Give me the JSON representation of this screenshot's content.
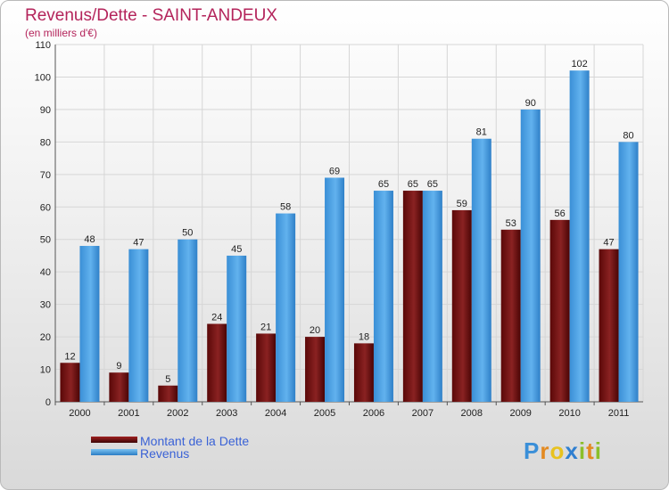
{
  "chart_data": {
    "type": "bar",
    "title": "Revenus/Dette - SAINT-ANDEUX",
    "subtitle": "(en milliers d'€)",
    "categories": [
      "2000",
      "2001",
      "2002",
      "2003",
      "2004",
      "2005",
      "2006",
      "2007",
      "2008",
      "2009",
      "2010",
      "2011"
    ],
    "series": [
      {
        "name": "Montant de la Dette",
        "color": "#7a1414",
        "values": [
          12,
          9,
          5,
          24,
          21,
          20,
          18,
          65,
          59,
          53,
          56,
          47
        ]
      },
      {
        "name": "Revenus",
        "color": "#4aa3e6",
        "values": [
          48,
          47,
          50,
          45,
          58,
          69,
          65,
          65,
          81,
          90,
          102,
          80
        ]
      }
    ],
    "ylim": [
      0,
      110
    ],
    "yticks": [
      0,
      10,
      20,
      30,
      40,
      50,
      60,
      70,
      80,
      90,
      100,
      110
    ],
    "grid": true,
    "legend": "bottom-left"
  },
  "logo": {
    "letters": [
      "P",
      "r",
      "o",
      "x",
      "i",
      "t",
      "i"
    ],
    "colors": [
      "#3a8fd8",
      "#e38a22",
      "#e8c21f",
      "#2f7fd0",
      "#8bbf2a",
      "#e38a22",
      "#8bbf2a"
    ]
  }
}
